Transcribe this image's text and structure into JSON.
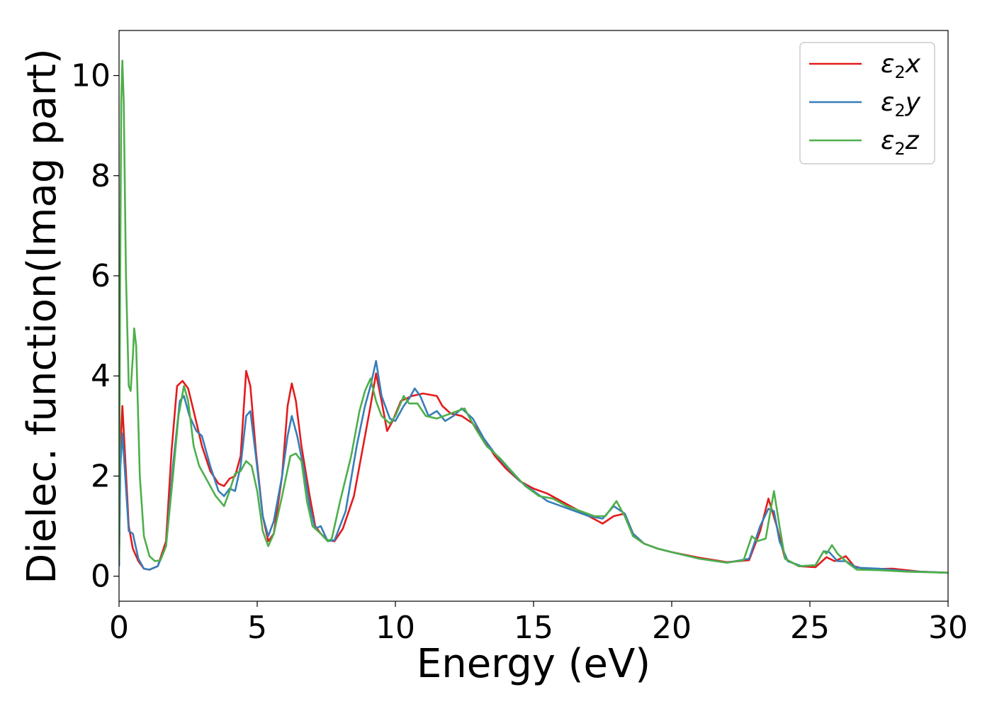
{
  "chart_data": {
    "type": "line",
    "xlabel": "Energy (eV)",
    "ylabel": "Dielec. function(Imag part)",
    "xlim": [
      0,
      30
    ],
    "ylim": [
      -0.5,
      10.9
    ],
    "xticks": [
      "0",
      "5",
      "10",
      "15",
      "20",
      "25",
      "30"
    ],
    "yticks": [
      "0",
      "2",
      "4",
      "6",
      "8",
      "10"
    ],
    "grid": false,
    "legend_position": "top-right",
    "series": [
      {
        "name": "ε2x",
        "legend_base": "ε",
        "legend_sub": "2",
        "legend_suffix": "x",
        "color": "#e41a1c",
        "points": [
          [
            0,
            0.2
          ],
          [
            0.05,
            2.5
          ],
          [
            0.12,
            3.4
          ],
          [
            0.2,
            2.6
          ],
          [
            0.35,
            1.0
          ],
          [
            0.5,
            0.55
          ],
          [
            0.7,
            0.3
          ],
          [
            0.9,
            0.15
          ],
          [
            1.1,
            0.13
          ],
          [
            1.4,
            0.2
          ],
          [
            1.7,
            0.7
          ],
          [
            1.9,
            2.5
          ],
          [
            2.1,
            3.8
          ],
          [
            2.3,
            3.9
          ],
          [
            2.5,
            3.75
          ],
          [
            2.7,
            3.3
          ],
          [
            3.0,
            2.6
          ],
          [
            3.3,
            2.1
          ],
          [
            3.6,
            1.85
          ],
          [
            3.8,
            1.8
          ],
          [
            4.0,
            1.95
          ],
          [
            4.2,
            2.0
          ],
          [
            4.4,
            2.4
          ],
          [
            4.6,
            4.1
          ],
          [
            4.75,
            3.8
          ],
          [
            4.95,
            2.5
          ],
          [
            5.2,
            1.2
          ],
          [
            5.4,
            0.7
          ],
          [
            5.6,
            0.85
          ],
          [
            5.9,
            2.0
          ],
          [
            6.1,
            3.4
          ],
          [
            6.25,
            3.85
          ],
          [
            6.4,
            3.5
          ],
          [
            6.6,
            2.6
          ],
          [
            6.9,
            1.6
          ],
          [
            7.1,
            1.0
          ],
          [
            7.3,
            0.85
          ],
          [
            7.55,
            0.72
          ],
          [
            7.8,
            0.7
          ],
          [
            8.1,
            0.95
          ],
          [
            8.5,
            1.6
          ],
          [
            8.8,
            2.5
          ],
          [
            9.1,
            3.4
          ],
          [
            9.3,
            4.05
          ],
          [
            9.5,
            3.5
          ],
          [
            9.7,
            2.9
          ],
          [
            9.9,
            3.1
          ],
          [
            10.2,
            3.5
          ],
          [
            10.6,
            3.6
          ],
          [
            11.0,
            3.65
          ],
          [
            11.5,
            3.6
          ],
          [
            11.7,
            3.4
          ],
          [
            12.0,
            3.25
          ],
          [
            12.4,
            3.2
          ],
          [
            12.8,
            3.05
          ],
          [
            13.2,
            2.75
          ],
          [
            13.6,
            2.4
          ],
          [
            14.0,
            2.15
          ],
          [
            14.5,
            1.9
          ],
          [
            15.0,
            1.75
          ],
          [
            15.5,
            1.65
          ],
          [
            16.0,
            1.5
          ],
          [
            16.5,
            1.35
          ],
          [
            17.0,
            1.2
          ],
          [
            17.5,
            1.05
          ],
          [
            17.9,
            1.2
          ],
          [
            18.3,
            1.25
          ],
          [
            18.6,
            0.85
          ],
          [
            19.0,
            0.65
          ],
          [
            19.5,
            0.55
          ],
          [
            20.0,
            0.48
          ],
          [
            21.0,
            0.37
          ],
          [
            22.0,
            0.28
          ],
          [
            22.8,
            0.32
          ],
          [
            23.2,
            0.9
          ],
          [
            23.5,
            1.55
          ],
          [
            23.8,
            1.0
          ],
          [
            24.1,
            0.35
          ],
          [
            24.6,
            0.2
          ],
          [
            25.2,
            0.18
          ],
          [
            25.6,
            0.38
          ],
          [
            25.9,
            0.3
          ],
          [
            26.3,
            0.4
          ],
          [
            26.6,
            0.2
          ],
          [
            27.0,
            0.14
          ],
          [
            28.0,
            0.15
          ],
          [
            29.0,
            0.09
          ],
          [
            30.0,
            0.07
          ]
        ]
      },
      {
        "name": "ε2y",
        "legend_base": "ε",
        "legend_sub": "2",
        "legend_suffix": "y",
        "color": "#377eb8",
        "points": [
          [
            0,
            0.2
          ],
          [
            0.05,
            2.2
          ],
          [
            0.12,
            2.85
          ],
          [
            0.2,
            2.2
          ],
          [
            0.35,
            0.9
          ],
          [
            0.5,
            0.85
          ],
          [
            0.7,
            0.35
          ],
          [
            0.9,
            0.15
          ],
          [
            1.1,
            0.13
          ],
          [
            1.4,
            0.2
          ],
          [
            1.7,
            0.6
          ],
          [
            1.95,
            2.2
          ],
          [
            2.2,
            3.5
          ],
          [
            2.35,
            3.6
          ],
          [
            2.55,
            3.2
          ],
          [
            2.8,
            2.9
          ],
          [
            3.0,
            2.8
          ],
          [
            3.3,
            2.2
          ],
          [
            3.6,
            1.7
          ],
          [
            3.8,
            1.6
          ],
          [
            4.0,
            1.75
          ],
          [
            4.2,
            1.7
          ],
          [
            4.4,
            2.2
          ],
          [
            4.6,
            3.2
          ],
          [
            4.75,
            3.3
          ],
          [
            4.95,
            2.4
          ],
          [
            5.2,
            1.2
          ],
          [
            5.4,
            0.8
          ],
          [
            5.6,
            1.1
          ],
          [
            5.9,
            2.0
          ],
          [
            6.1,
            2.8
          ],
          [
            6.25,
            3.2
          ],
          [
            6.45,
            2.8
          ],
          [
            6.7,
            2.1
          ],
          [
            6.9,
            1.4
          ],
          [
            7.1,
            0.95
          ],
          [
            7.3,
            1.0
          ],
          [
            7.55,
            0.7
          ],
          [
            7.8,
            0.72
          ],
          [
            8.2,
            1.3
          ],
          [
            8.6,
            2.6
          ],
          [
            8.9,
            3.4
          ],
          [
            9.1,
            3.8
          ],
          [
            9.3,
            4.3
          ],
          [
            9.5,
            3.6
          ],
          [
            9.8,
            3.15
          ],
          [
            10.0,
            3.1
          ],
          [
            10.3,
            3.4
          ],
          [
            10.5,
            3.55
          ],
          [
            10.7,
            3.75
          ],
          [
            10.9,
            3.6
          ],
          [
            11.2,
            3.2
          ],
          [
            11.5,
            3.3
          ],
          [
            11.8,
            3.1
          ],
          [
            12.1,
            3.2
          ],
          [
            12.4,
            3.35
          ],
          [
            12.8,
            3.15
          ],
          [
            13.2,
            2.75
          ],
          [
            13.6,
            2.45
          ],
          [
            14.0,
            2.2
          ],
          [
            14.5,
            1.9
          ],
          [
            15.0,
            1.7
          ],
          [
            15.5,
            1.5
          ],
          [
            16.0,
            1.4
          ],
          [
            16.5,
            1.3
          ],
          [
            17.0,
            1.2
          ],
          [
            17.5,
            1.15
          ],
          [
            17.9,
            1.4
          ],
          [
            18.3,
            1.25
          ],
          [
            18.6,
            0.85
          ],
          [
            19.0,
            0.65
          ],
          [
            19.5,
            0.55
          ],
          [
            20.0,
            0.48
          ],
          [
            21.0,
            0.35
          ],
          [
            22.0,
            0.27
          ],
          [
            22.8,
            0.35
          ],
          [
            23.2,
            1.0
          ],
          [
            23.5,
            1.35
          ],
          [
            23.7,
            1.3
          ],
          [
            23.9,
            0.7
          ],
          [
            24.2,
            0.3
          ],
          [
            24.7,
            0.2
          ],
          [
            25.2,
            0.22
          ],
          [
            25.5,
            0.5
          ],
          [
            25.7,
            0.48
          ],
          [
            26.0,
            0.3
          ],
          [
            26.3,
            0.3
          ],
          [
            26.7,
            0.17
          ],
          [
            27.5,
            0.15
          ],
          [
            28.5,
            0.1
          ],
          [
            30.0,
            0.07
          ]
        ]
      },
      {
        "name": "ε2z",
        "legend_base": "ε",
        "legend_sub": "2",
        "legend_suffix": "z",
        "color": "#4daf4a",
        "points": [
          [
            0,
            0.3
          ],
          [
            0.04,
            6.0
          ],
          [
            0.08,
            9.5
          ],
          [
            0.12,
            10.3
          ],
          [
            0.17,
            9.5
          ],
          [
            0.25,
            6.0
          ],
          [
            0.35,
            3.8
          ],
          [
            0.42,
            3.7
          ],
          [
            0.5,
            4.4
          ],
          [
            0.55,
            4.95
          ],
          [
            0.62,
            4.6
          ],
          [
            0.75,
            2.0
          ],
          [
            0.9,
            0.8
          ],
          [
            1.1,
            0.4
          ],
          [
            1.3,
            0.3
          ],
          [
            1.5,
            0.32
          ],
          [
            1.7,
            0.6
          ],
          [
            1.95,
            2.0
          ],
          [
            2.15,
            3.2
          ],
          [
            2.35,
            3.8
          ],
          [
            2.5,
            3.5
          ],
          [
            2.7,
            2.6
          ],
          [
            2.9,
            2.2
          ],
          [
            3.2,
            1.9
          ],
          [
            3.5,
            1.6
          ],
          [
            3.8,
            1.4
          ],
          [
            4.0,
            1.7
          ],
          [
            4.2,
            2.05
          ],
          [
            4.4,
            2.1
          ],
          [
            4.6,
            2.3
          ],
          [
            4.8,
            2.2
          ],
          [
            5.0,
            1.7
          ],
          [
            5.2,
            0.9
          ],
          [
            5.4,
            0.6
          ],
          [
            5.6,
            0.85
          ],
          [
            5.9,
            1.6
          ],
          [
            6.2,
            2.4
          ],
          [
            6.4,
            2.45
          ],
          [
            6.6,
            2.3
          ],
          [
            6.8,
            1.5
          ],
          [
            7.0,
            1.0
          ],
          [
            7.3,
            0.85
          ],
          [
            7.55,
            0.7
          ],
          [
            7.7,
            0.75
          ],
          [
            8.0,
            1.5
          ],
          [
            8.4,
            2.4
          ],
          [
            8.7,
            3.3
          ],
          [
            8.9,
            3.7
          ],
          [
            9.1,
            3.95
          ],
          [
            9.3,
            3.5
          ],
          [
            9.5,
            3.2
          ],
          [
            9.8,
            3.05
          ],
          [
            10.0,
            3.2
          ],
          [
            10.3,
            3.6
          ],
          [
            10.5,
            3.45
          ],
          [
            10.8,
            3.45
          ],
          [
            11.1,
            3.2
          ],
          [
            11.5,
            3.15
          ],
          [
            12.0,
            3.25
          ],
          [
            12.5,
            3.35
          ],
          [
            12.9,
            2.95
          ],
          [
            13.3,
            2.6
          ],
          [
            13.8,
            2.35
          ],
          [
            14.2,
            2.1
          ],
          [
            14.7,
            1.8
          ],
          [
            15.2,
            1.6
          ],
          [
            15.7,
            1.55
          ],
          [
            16.2,
            1.4
          ],
          [
            16.7,
            1.3
          ],
          [
            17.2,
            1.2
          ],
          [
            17.6,
            1.2
          ],
          [
            18.0,
            1.5
          ],
          [
            18.3,
            1.2
          ],
          [
            18.6,
            0.8
          ],
          [
            19.0,
            0.65
          ],
          [
            19.5,
            0.55
          ],
          [
            20.0,
            0.48
          ],
          [
            21.0,
            0.35
          ],
          [
            22.0,
            0.27
          ],
          [
            22.6,
            0.32
          ],
          [
            22.9,
            0.8
          ],
          [
            23.1,
            0.7
          ],
          [
            23.4,
            0.75
          ],
          [
            23.7,
            1.7
          ],
          [
            23.9,
            1.0
          ],
          [
            24.1,
            0.35
          ],
          [
            24.6,
            0.2
          ],
          [
            25.2,
            0.22
          ],
          [
            25.5,
            0.5
          ],
          [
            25.6,
            0.45
          ],
          [
            25.8,
            0.62
          ],
          [
            26.0,
            0.45
          ],
          [
            26.4,
            0.25
          ],
          [
            26.7,
            0.13
          ],
          [
            27.5,
            0.12
          ],
          [
            28.5,
            0.09
          ],
          [
            30.0,
            0.07
          ]
        ]
      }
    ]
  }
}
